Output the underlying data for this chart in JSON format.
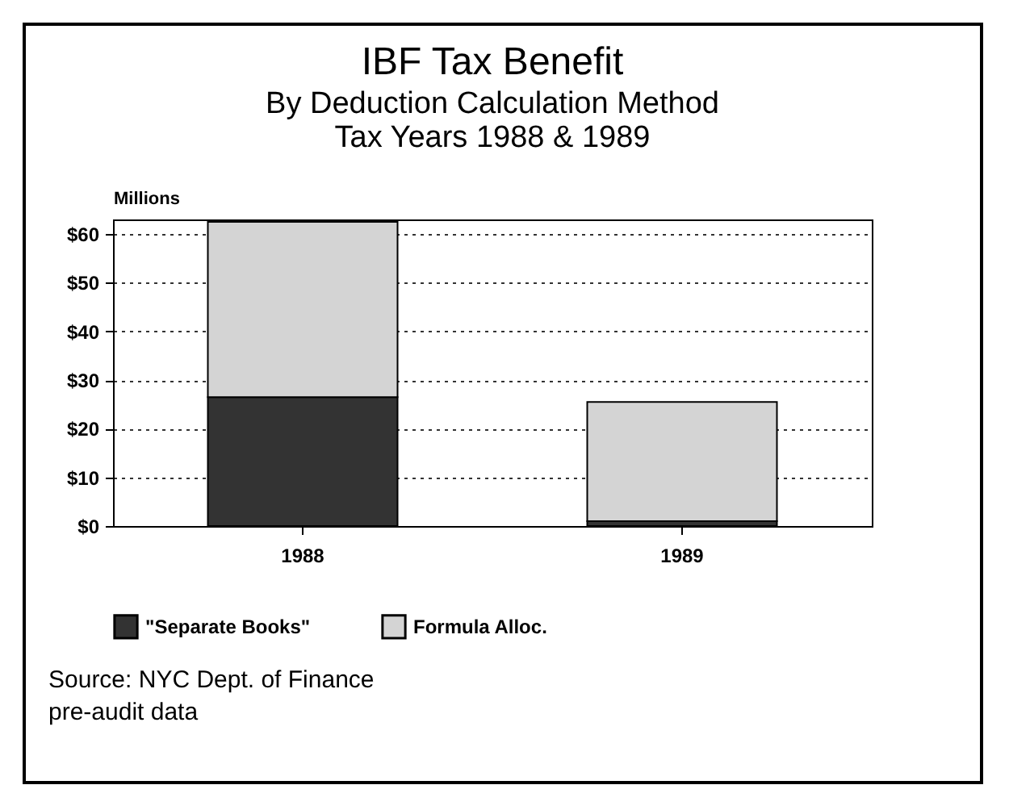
{
  "chart_data": {
    "type": "bar",
    "title": "IBF Tax Benefit",
    "subtitle": "By Deduction Calculation Method\nTax Years 1988 & 1989",
    "ylabel": "Millions",
    "categories": [
      "1988",
      "1989"
    ],
    "stacked": true,
    "series": [
      {
        "name": "\"Separate Books\"",
        "color": "#333333",
        "values": [
          26.5,
          1
        ]
      },
      {
        "name": "Formula Alloc.",
        "color": "#d4d4d4",
        "values": [
          36,
          24.5
        ]
      }
    ],
    "ylim": [
      0,
      63
    ],
    "yticks": [
      {
        "value": 0,
        "label": "$0"
      },
      {
        "value": 10,
        "label": "$10"
      },
      {
        "value": 20,
        "label": "$20"
      },
      {
        "value": 30,
        "label": "$30"
      },
      {
        "value": 40,
        "label": "$40"
      },
      {
        "value": 50,
        "label": "$50"
      },
      {
        "value": 60,
        "label": "$60"
      }
    ],
    "grid": "y",
    "legend": "bottom",
    "annotations": [
      "Source: NYC Dept. of Finance",
      "pre-audit data"
    ]
  }
}
